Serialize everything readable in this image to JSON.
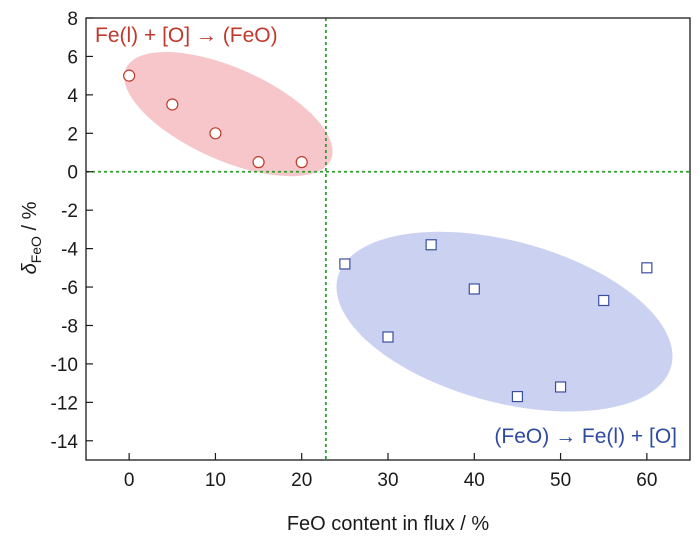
{
  "chart_data": {
    "type": "scatter",
    "xlabel": "FeO content in flux / %",
    "ylabel": {
      "symbol": "δ",
      "subscript": "FeO",
      "suffix": " / %"
    },
    "xlim": [
      -5,
      65
    ],
    "ylim": [
      -15,
      8
    ],
    "x_ticks": [
      0,
      10,
      20,
      30,
      40,
      50,
      60
    ],
    "y_ticks": [
      8,
      6,
      4,
      2,
      0,
      -2,
      -4,
      -6,
      -8,
      -10,
      -12,
      -14
    ],
    "x_tick_labels": [
      "0",
      "10",
      "20",
      "30",
      "40",
      "50",
      "60"
    ],
    "y_tick_labels": [
      "8",
      "6",
      "4",
      "2",
      "0",
      "-2",
      "-4",
      "-6",
      "-8",
      "-10",
      "-12",
      "-14"
    ],
    "series": [
      {
        "marker": "circle",
        "color": "#c0392b",
        "points": [
          {
            "x": 0,
            "y": 5.0
          },
          {
            "x": 5,
            "y": 3.5
          },
          {
            "x": 10,
            "y": 2.0
          },
          {
            "x": 15,
            "y": 0.5
          },
          {
            "x": 20,
            "y": 0.5
          }
        ]
      },
      {
        "marker": "square",
        "color": "#3a4fa0",
        "points": [
          {
            "x": 25,
            "y": -4.8
          },
          {
            "x": 30,
            "y": -8.6
          },
          {
            "x": 35,
            "y": -3.8
          },
          {
            "x": 40,
            "y": -6.1
          },
          {
            "x": 45,
            "y": -11.7
          },
          {
            "x": 50,
            "y": -11.2
          },
          {
            "x": 55,
            "y": -6.7
          },
          {
            "x": 60,
            "y": -5.0
          }
        ]
      }
    ],
    "reference_lines": {
      "vertical_x": 22.8,
      "horizontal_y": 0,
      "color": "#2e9e2e",
      "style": "dotted"
    },
    "regions": [
      {
        "color": "#f4b3b8",
        "cx": 11.5,
        "cy": 3.0,
        "rx_data": 13.0,
        "ry_data": 2.4,
        "rotate_deg": 24
      },
      {
        "color": "#b9c1ec",
        "cx": 43.5,
        "cy": -7.8,
        "rx_data": 20.0,
        "ry_data": 4.2,
        "rotate_deg": 15
      }
    ],
    "annotations": [
      {
        "text": "Fe(l) + [O] → (FeO)",
        "color": "#c0392b"
      },
      {
        "text": "(FeO) → Fe(l) + [O]",
        "color": "#2f4ba0"
      }
    ],
    "grid": false,
    "legend": "none"
  }
}
